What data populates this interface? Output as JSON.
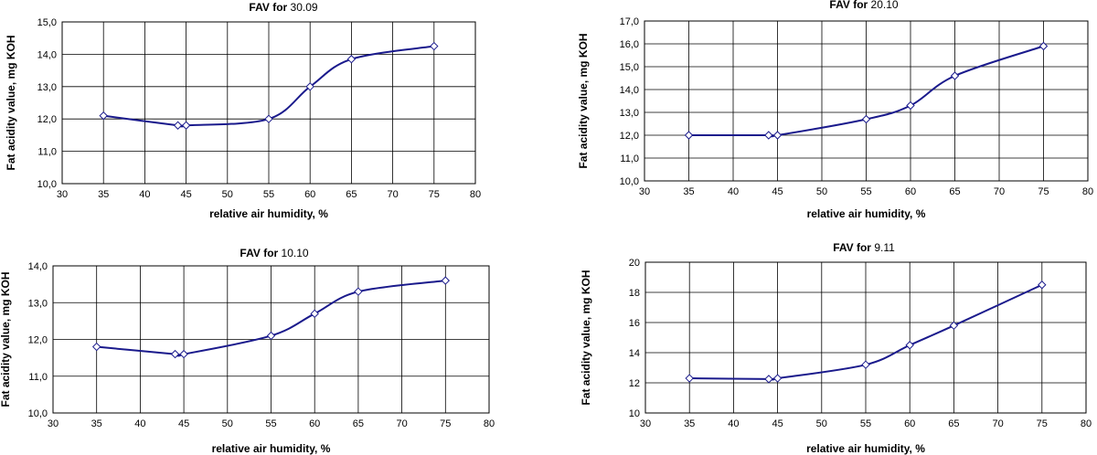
{
  "chart_data": [
    {
      "type": "line",
      "title": "FAV for",
      "title_date": "30.09",
      "xlabel": "relative air humidity, %",
      "ylabel": "Fat acidity value, mg KOH",
      "xlim": [
        30,
        80
      ],
      "ylim": [
        10,
        15
      ],
      "xticks": [
        "30",
        "35",
        "40",
        "45",
        "50",
        "55",
        "60",
        "65",
        "70",
        "75",
        "80"
      ],
      "yticks": [
        "10,0",
        "11,0",
        "12,0",
        "13,0",
        "14,0",
        "15,0"
      ],
      "x": [
        35,
        44,
        45,
        55,
        60,
        65,
        75
      ],
      "series": [
        {
          "values": [
            12.1,
            11.8,
            11.8,
            12.0,
            13.0,
            13.85,
            14.25
          ]
        }
      ],
      "grid": true
    },
    {
      "type": "line",
      "title": "FAV for",
      "title_date": "20.10",
      "xlabel": "relative air humidity, %",
      "ylabel": "Fat acidity value, mg KOH",
      "xlim": [
        30,
        80
      ],
      "ylim": [
        10,
        17
      ],
      "xticks": [
        "30",
        "35",
        "40",
        "45",
        "50",
        "55",
        "60",
        "65",
        "70",
        "75",
        "80"
      ],
      "yticks": [
        "10,0",
        "11,0",
        "12,0",
        "13,0",
        "14,0",
        "15,0",
        "16,0",
        "17,0"
      ],
      "x": [
        35,
        44,
        45,
        55,
        60,
        65,
        75
      ],
      "series": [
        {
          "values": [
            12.0,
            12.0,
            12.0,
            12.7,
            13.3,
            14.6,
            15.9
          ]
        }
      ],
      "grid": true
    },
    {
      "type": "line",
      "title": "FAV for",
      "title_date": "10.10",
      "xlabel": "relative air humidity, %",
      "ylabel": "Fat acidity value, mg KOH",
      "xlim": [
        30,
        80
      ],
      "ylim": [
        10,
        14
      ],
      "xticks": [
        "30",
        "35",
        "40",
        "45",
        "50",
        "55",
        "60",
        "65",
        "70",
        "75",
        "80"
      ],
      "yticks": [
        "10,0",
        "11,0",
        "12,0",
        "13,0",
        "14,0"
      ],
      "x": [
        35,
        44,
        45,
        55,
        60,
        65,
        75
      ],
      "series": [
        {
          "values": [
            11.8,
            11.6,
            11.6,
            12.1,
            12.7,
            13.3,
            13.6
          ]
        }
      ],
      "grid": true
    },
    {
      "type": "line",
      "title": "FAV for",
      "title_date": "9.11",
      "xlabel": "relative air humidity, %",
      "ylabel": "Fat acidity value, mg KOH",
      "xlim": [
        30,
        80
      ],
      "ylim": [
        10,
        20
      ],
      "xticks": [
        "30",
        "35",
        "40",
        "45",
        "50",
        "55",
        "60",
        "65",
        "70",
        "75",
        "80"
      ],
      "yticks": [
        "10",
        "12",
        "14",
        "16",
        "18",
        "20"
      ],
      "x": [
        35,
        44,
        45,
        55,
        60,
        65,
        75
      ],
      "series": [
        {
          "values": [
            12.3,
            12.25,
            12.3,
            13.2,
            14.5,
            15.8,
            18.5
          ]
        }
      ],
      "grid": true
    }
  ]
}
